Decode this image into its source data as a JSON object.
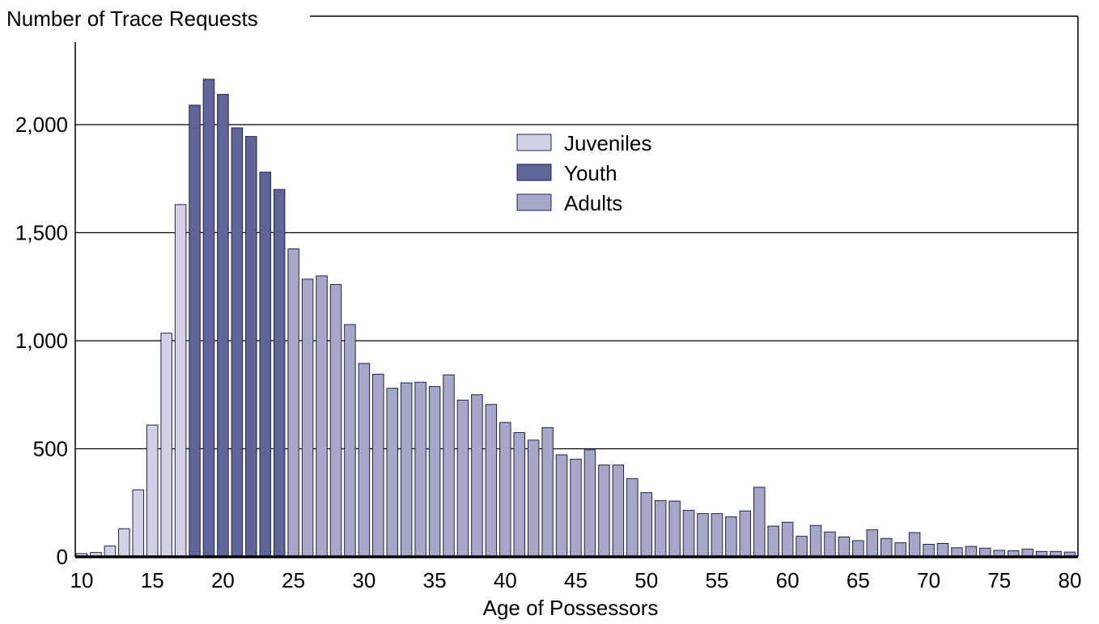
{
  "chart_data": {
    "type": "bar",
    "ylabel": "Number of Trace Requests",
    "xlabel": "Age of Possessors",
    "ylim": [
      0,
      2250
    ],
    "xlim": [
      10,
      80
    ],
    "grid": "horizontal",
    "legend_position": "center-top",
    "y_ticks": [
      {
        "value": 0,
        "label": "0"
      },
      {
        "value": 500,
        "label": "500"
      },
      {
        "value": 1000,
        "label": "1,000"
      },
      {
        "value": 1500,
        "label": "1,500"
      },
      {
        "value": 2000,
        "label": "2,000"
      }
    ],
    "x_ticks": [
      10,
      15,
      20,
      25,
      30,
      35,
      40,
      45,
      50,
      55,
      60,
      65,
      70,
      75,
      80
    ],
    "series": [
      {
        "name": "Juveniles",
        "color": "#d2d2e6"
      },
      {
        "name": "Youth",
        "color": "#5f6596"
      },
      {
        "name": "Adults",
        "color": "#a6a8c9"
      }
    ],
    "ages": [
      10,
      11,
      12,
      13,
      14,
      15,
      16,
      17,
      18,
      19,
      20,
      21,
      22,
      23,
      24,
      25,
      26,
      27,
      28,
      29,
      30,
      31,
      32,
      33,
      34,
      35,
      36,
      37,
      38,
      39,
      40,
      41,
      42,
      43,
      44,
      45,
      46,
      47,
      48,
      49,
      50,
      51,
      52,
      53,
      54,
      55,
      56,
      57,
      58,
      59,
      60,
      61,
      62,
      63,
      64,
      65,
      66,
      67,
      68,
      69,
      70,
      71,
      72,
      73,
      74,
      75,
      76,
      77,
      78,
      79,
      80
    ],
    "values": [
      15,
      20,
      50,
      130,
      310,
      610,
      1035,
      1630,
      2090,
      2210,
      2140,
      1985,
      1945,
      1780,
      1700,
      1425,
      1285,
      1300,
      1260,
      1075,
      895,
      845,
      780,
      805,
      808,
      788,
      842,
      725,
      750,
      705,
      622,
      575,
      540,
      598,
      472,
      452,
      495,
      425,
      425,
      362,
      297,
      260,
      258,
      215,
      200,
      200,
      185,
      212,
      322,
      142,
      160,
      95,
      145,
      115,
      92,
      75,
      125,
      85,
      65,
      112,
      58,
      62,
      42,
      48,
      40,
      30,
      28,
      36,
      25,
      25,
      22
    ],
    "groups": [
      "Juveniles",
      "Juveniles",
      "Juveniles",
      "Juveniles",
      "Juveniles",
      "Juveniles",
      "Juveniles",
      "Juveniles",
      "Youth",
      "Youth",
      "Youth",
      "Youth",
      "Youth",
      "Youth",
      "Youth",
      "Adults",
      "Adults",
      "Adults",
      "Adults",
      "Adults",
      "Adults",
      "Adults",
      "Adults",
      "Adults",
      "Adults",
      "Adults",
      "Adults",
      "Adults",
      "Adults",
      "Adults",
      "Adults",
      "Adults",
      "Adults",
      "Adults",
      "Adults",
      "Adults",
      "Adults",
      "Adults",
      "Adults",
      "Adults",
      "Adults",
      "Adults",
      "Adults",
      "Adults",
      "Adults",
      "Adults",
      "Adults",
      "Adults",
      "Adults",
      "Adults",
      "Adults",
      "Adults",
      "Adults",
      "Adults",
      "Adults",
      "Adults",
      "Adults",
      "Adults",
      "Adults",
      "Adults",
      "Adults",
      "Adults",
      "Adults",
      "Adults",
      "Adults",
      "Adults",
      "Adults",
      "Adults",
      "Adults",
      "Adults",
      "Adults"
    ]
  }
}
